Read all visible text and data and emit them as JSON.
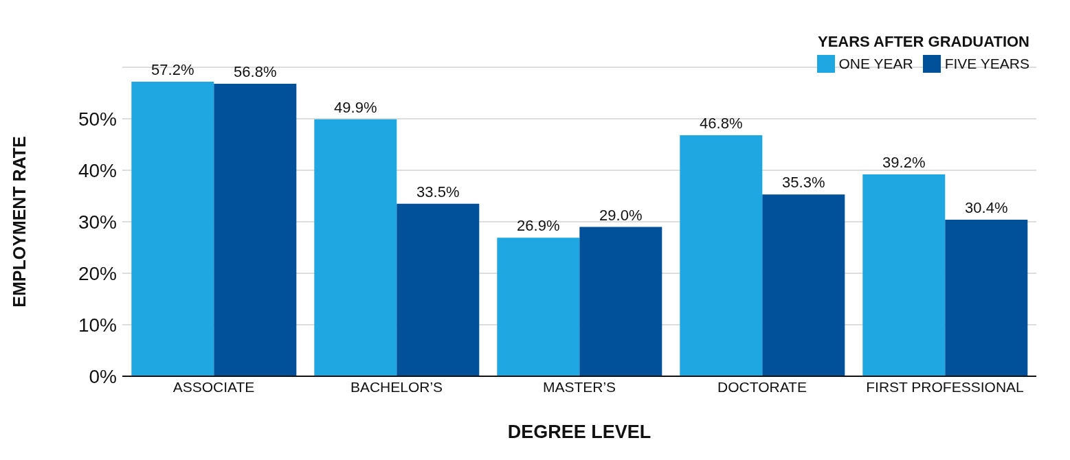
{
  "chart_data": {
    "type": "bar",
    "xlabel": "DEGREE LEVEL",
    "ylabel": "EMPLOYMENT RATE",
    "legend_title": "YEARS AFTER GRADUATION",
    "categories": [
      "ASSOCIATE",
      "BACHELOR’S",
      "MASTER’S",
      "DOCTORATE",
      "FIRST PROFESSIONAL"
    ],
    "series": [
      {
        "name": "ONE YEAR",
        "color": "#1ea7e1",
        "values": [
          57.2,
          49.9,
          26.9,
          46.8,
          39.2
        ],
        "value_labels": [
          "57.2%",
          "49.9%",
          "26.9%",
          "46.8%",
          "39.2%"
        ]
      },
      {
        "name": "FIVE YEARS",
        "color": "#00519a",
        "values": [
          56.8,
          33.5,
          29.0,
          35.3,
          30.4
        ],
        "value_labels": [
          "56.8%",
          "33.5%",
          "29.0%",
          "35.3%",
          "30.4%"
        ]
      }
    ],
    "ylim": [
      0,
      60
    ],
    "yticks": [
      {
        "value": 0,
        "label": "0%"
      },
      {
        "value": 10,
        "label": "10%"
      },
      {
        "value": 20,
        "label": "20%"
      },
      {
        "value": 30,
        "label": "30%"
      },
      {
        "value": 40,
        "label": "40%"
      },
      {
        "value": 50,
        "label": "50%"
      }
    ],
    "grid": "y",
    "legend": "top right"
  }
}
